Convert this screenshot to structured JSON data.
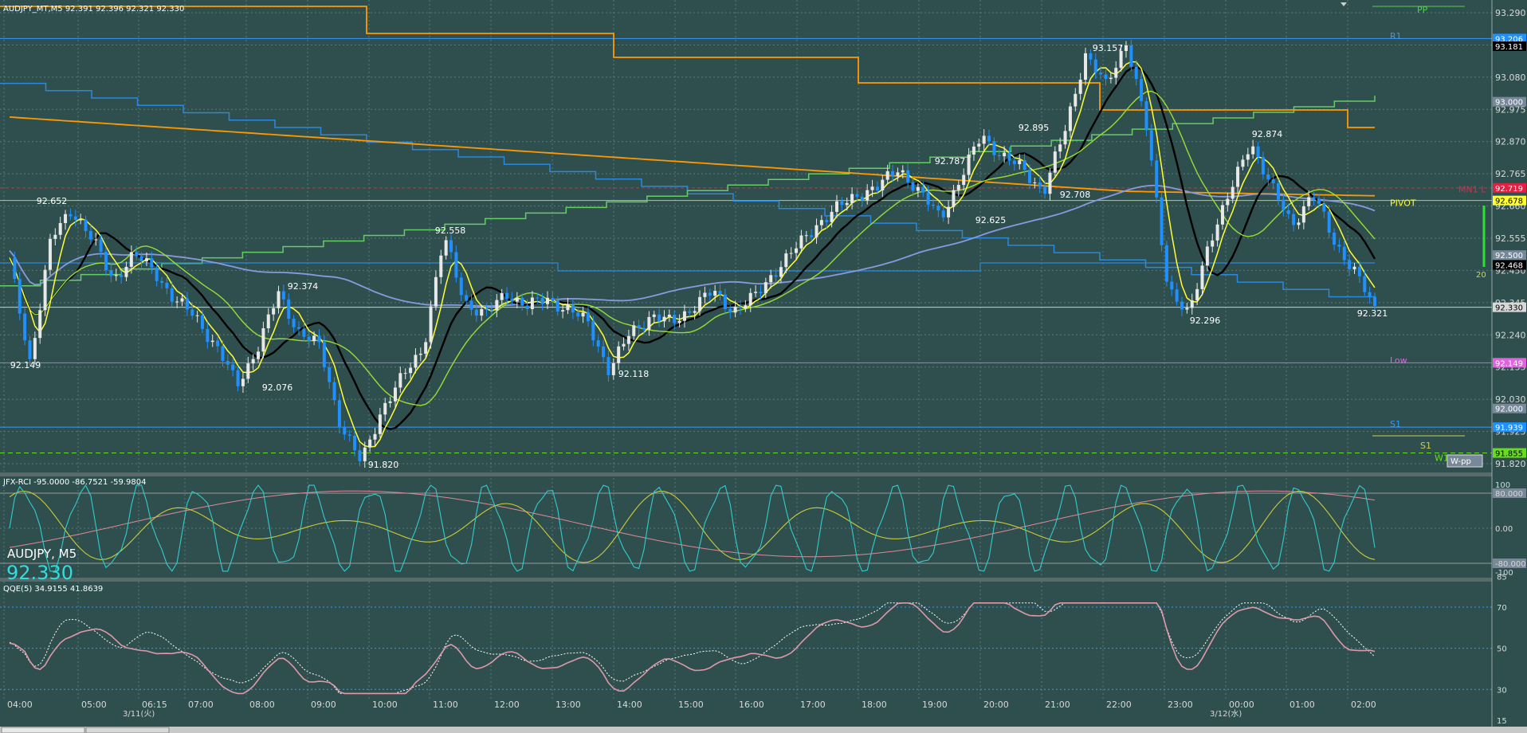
{
  "window": {
    "title": "AUDJPY_MT,M5  92.391 92.396 92.321 92.330",
    "symbol_label": "AUDJPY, M5",
    "current_price": "92.330"
  },
  "colors": {
    "background": "#2f4f4f",
    "grid": "#5a7a7a",
    "bull_candle": "#e8e8e8",
    "bear_candle": "#1e90ff",
    "orange": "#ff9900",
    "blue_step": "#3399ff",
    "yellow": "#ffff33",
    "lime": "#99dd33",
    "black": "#000000",
    "lavender": "#8899dd",
    "cyan": "#33cccc",
    "pink": "#dd8899",
    "magenta": "#dd66dd"
  },
  "price_axis": {
    "labels": [
      "93.290",
      "93.185",
      "93.080",
      "92.975",
      "92.870",
      "92.765",
      "92.660",
      "92.555",
      "92.450",
      "92.345",
      "92.240",
      "92.135",
      "92.030",
      "91.925",
      "91.820"
    ]
  },
  "price_tags": [
    {
      "text": "93.206",
      "price": 93.206,
      "bg": "#1e90ff",
      "fg": "#ffffff"
    },
    {
      "text": "93.181",
      "price": 93.181,
      "bg": "#000000",
      "fg": "#ffffff"
    },
    {
      "text": "93.000",
      "price": 93.0,
      "bg": "#778899",
      "fg": "#ffffff"
    },
    {
      "text": "92.719",
      "price": 92.719,
      "bg": "#dd2244",
      "fg": "#ffffff"
    },
    {
      "text": "92.678",
      "price": 92.678,
      "bg": "#ffff33",
      "fg": "#000000"
    },
    {
      "text": "92.500",
      "price": 92.5,
      "bg": "#778899",
      "fg": "#ffffff"
    },
    {
      "text": "92.468",
      "price": 92.468,
      "bg": "#000000",
      "fg": "#ffffff"
    },
    {
      "text": "92.330",
      "price": 92.33,
      "bg": "#d8d8d8",
      "fg": "#000000"
    },
    {
      "text": "92.149",
      "price": 92.149,
      "bg": "#dd66dd",
      "fg": "#ffffff"
    },
    {
      "text": "92.000",
      "price": 92.0,
      "bg": "#778899",
      "fg": "#ffffff"
    },
    {
      "text": "91.939",
      "price": 91.939,
      "bg": "#1e90ff",
      "fg": "#ffffff"
    },
    {
      "text": "91.855",
      "price": 91.855,
      "bg": "#66dd22",
      "fg": "#000000"
    }
  ],
  "level_labels": [
    {
      "text": "PP",
      "price": 93.3,
      "color": "#55cc55"
    },
    {
      "text": "R1",
      "price": 93.215,
      "color": "#3399ff"
    },
    {
      "text": "MN1 L",
      "price": 92.715,
      "color": "#cc3344"
    },
    {
      "text": "PIVOT",
      "price": 92.67,
      "color": "#ffff33"
    },
    {
      "text": "Low",
      "price": 92.157,
      "color": "#dd66dd"
    },
    {
      "text": "S1",
      "price": 91.95,
      "color": "#3399ff"
    },
    {
      "text": "S1",
      "price": 91.88,
      "color": "#cccc55"
    },
    {
      "text": "W1 L",
      "price": 91.84,
      "color": "#66dd22"
    }
  ],
  "wpp_label": "W-pp",
  "ma_period_label": "20",
  "price_annotations": [
    "92.652",
    "92.149",
    "92.374",
    "92.076",
    "92.558",
    "91.820",
    "92.118",
    "92.787",
    "92.895",
    "92.625",
    "93.157",
    "92.708",
    "92.874",
    "92.296",
    "92.321"
  ],
  "rci": {
    "header": "JFX-RCI -95.0000 -86.7521 -59.9804",
    "axis_labels": [
      "100",
      "80.000",
      "0.00",
      "-80.000",
      "-100"
    ]
  },
  "qqe": {
    "header": "QQE(5) 34.9155 41.8639",
    "axis_labels": [
      "85",
      "70",
      "50",
      "30",
      "15"
    ]
  },
  "time_axis": {
    "labels": [
      "04:00",
      "05:00",
      "06:15",
      "07:00",
      "08:00",
      "09:00",
      "10:00",
      "11:00",
      "12:00",
      "13:00",
      "14:00",
      "15:00",
      "16:00",
      "17:00",
      "18:00",
      "19:00",
      "20:00",
      "21:00",
      "22:00",
      "23:00",
      "00:00",
      "01:00",
      "02:00"
    ],
    "dates": [
      "3/11(火)",
      "3/12(水)"
    ]
  },
  "chart_data": {
    "type": "candlestick",
    "symbol": "AUDJPY",
    "timeframe": "M5",
    "ylim": [
      91.77,
      93.32
    ],
    "x_time": [
      "04:00",
      "05:00",
      "06:15",
      "07:00",
      "08:00",
      "09:00",
      "10:00",
      "11:00",
      "12:00",
      "13:00",
      "14:00",
      "15:00",
      "16:00",
      "17:00",
      "18:00",
      "19:00",
      "20:00",
      "21:00",
      "22:00",
      "23:00",
      "00:00",
      "01:00",
      "02:00"
    ],
    "price_path": [
      92.48,
      92.15,
      92.55,
      92.652,
      92.55,
      92.42,
      92.5,
      92.45,
      92.35,
      92.3,
      92.2,
      92.076,
      92.2,
      92.374,
      92.25,
      92.2,
      91.95,
      91.82,
      92.0,
      92.1,
      92.2,
      92.558,
      92.35,
      92.3,
      92.38,
      92.33,
      92.36,
      92.32,
      92.28,
      92.118,
      92.25,
      92.3,
      92.28,
      92.33,
      92.38,
      92.32,
      92.36,
      92.45,
      92.52,
      92.6,
      92.65,
      92.7,
      92.72,
      92.787,
      92.7,
      92.625,
      92.75,
      92.895,
      92.82,
      92.78,
      92.708,
      92.9,
      93.157,
      93.05,
      93.2,
      92.9,
      92.4,
      92.296,
      92.55,
      92.7,
      92.874,
      92.72,
      92.6,
      92.7,
      92.55,
      92.45,
      92.321
    ],
    "levels": {
      "R1": 93.206,
      "PIVOT": 92.678,
      "MN1 L": 92.719,
      "Low": 92.149,
      "S1": 91.939,
      "W1 L": 91.855
    },
    "rci_last": [
      -95.0,
      -86.7521,
      -59.9804
    ],
    "qqe_last": [
      34.9155,
      41.8639
    ]
  }
}
